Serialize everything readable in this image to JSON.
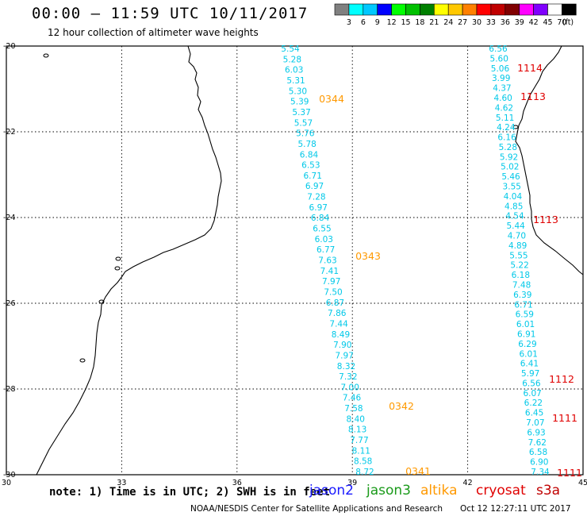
{
  "header": {
    "title": "00:00 – 11:59 UTC 10/11/2017",
    "subtitle": "12 hour collection of altimeter wave heights"
  },
  "colorbar": {
    "unit_label": "(ft)",
    "bins": [
      {
        "color": "#808080",
        "label": "3"
      },
      {
        "color": "#00ffff",
        "label": "6"
      },
      {
        "color": "#00c8ff",
        "label": "9"
      },
      {
        "color": "#0000ff",
        "label": "12"
      },
      {
        "color": "#00ff00",
        "label": "15"
      },
      {
        "color": "#00c000",
        "label": "18"
      },
      {
        "color": "#008000",
        "label": "21"
      },
      {
        "color": "#ffff00",
        "label": "24"
      },
      {
        "color": "#ffc800",
        "label": "27"
      },
      {
        "color": "#ff8000",
        "label": "30"
      },
      {
        "color": "#ff0000",
        "label": "33"
      },
      {
        "color": "#c00000",
        "label": "36"
      },
      {
        "color": "#800000",
        "label": "39"
      },
      {
        "color": "#ff00ff",
        "label": "42"
      },
      {
        "color": "#8000ff",
        "label": "45"
      },
      {
        "color": "#ffffff",
        "label": "70"
      },
      {
        "color": "#000000",
        "label": ""
      }
    ]
  },
  "map": {
    "lon_labels": [
      "30",
      "33",
      "36",
      "39",
      "42",
      "45"
    ],
    "lat_labels": [
      "-20",
      "-22",
      "-24",
      "-26",
      "-28",
      "-30"
    ],
    "value_color": "#00c8e8",
    "time_color_altika": "#ff9900",
    "time_color_cryosat": "#e00000",
    "track1": [
      "5.54",
      "5.28",
      "6.03",
      "5.31",
      "5.30",
      "5.39",
      "5.37",
      "5.57",
      "5.76",
      "5.78",
      "6.84",
      "6.53",
      "6.71",
      "6.97",
      "7.28",
      "6.97",
      "6.84",
      "6.55",
      "6.03",
      "6.77",
      "7.63",
      "7.41",
      "7.97",
      "7.50",
      "6.87",
      "7.86",
      "7.44",
      "8.49",
      "7.90",
      "7.97",
      "8.32",
      "7.32",
      "7.00",
      "7.46",
      "7.58",
      "8.40",
      "8.13",
      "7.77",
      "8.11",
      "8.58",
      "8.72"
    ],
    "track2": [
      "6.56",
      "5.60",
      "5.06",
      "3.99",
      "4.37",
      "4.60",
      "4.62",
      "5.11",
      "4.24",
      "6.16",
      "5.28",
      "5.92",
      "5.02",
      "5.46",
      "3.55",
      "4.04",
      "4.85",
      "4.54",
      "5.44",
      "4.70",
      "4.89",
      "5.55",
      "5.22",
      "6.18",
      "7.48",
      "6.39",
      "6.71",
      "6.59",
      "6.01",
      "6.91",
      "6.29",
      "6.01",
      "6.41",
      "5.97",
      "6.56",
      "6.07",
      "6.22",
      "6.45",
      "7.07",
      "6.93",
      "7.62",
      "6.58",
      "6.90",
      "7.34"
    ],
    "time_labels_altika": [
      "0344",
      "0343",
      "0342",
      "0341"
    ],
    "time_labels_cryosat": [
      "1114",
      "1113",
      "1113",
      "1112",
      "1111",
      "1111"
    ]
  },
  "footer": {
    "note": "note: 1) Time is in UTC; 2) SWH is in feet",
    "satellites": [
      {
        "name": "jason2",
        "color": "#1a1aff"
      },
      {
        "name": "jason3",
        "color": "#1a9a1a"
      },
      {
        "name": "altika",
        "color": "#ff9900"
      },
      {
        "name": "cryosat",
        "color": "#e00000"
      },
      {
        "name": "s3a",
        "color": "#c00000"
      }
    ],
    "credit": "NOAA/NESDIS Center for Satellite Applications and Research",
    "timestamp": "Oct 12 12:27:11 UTC 2017"
  }
}
